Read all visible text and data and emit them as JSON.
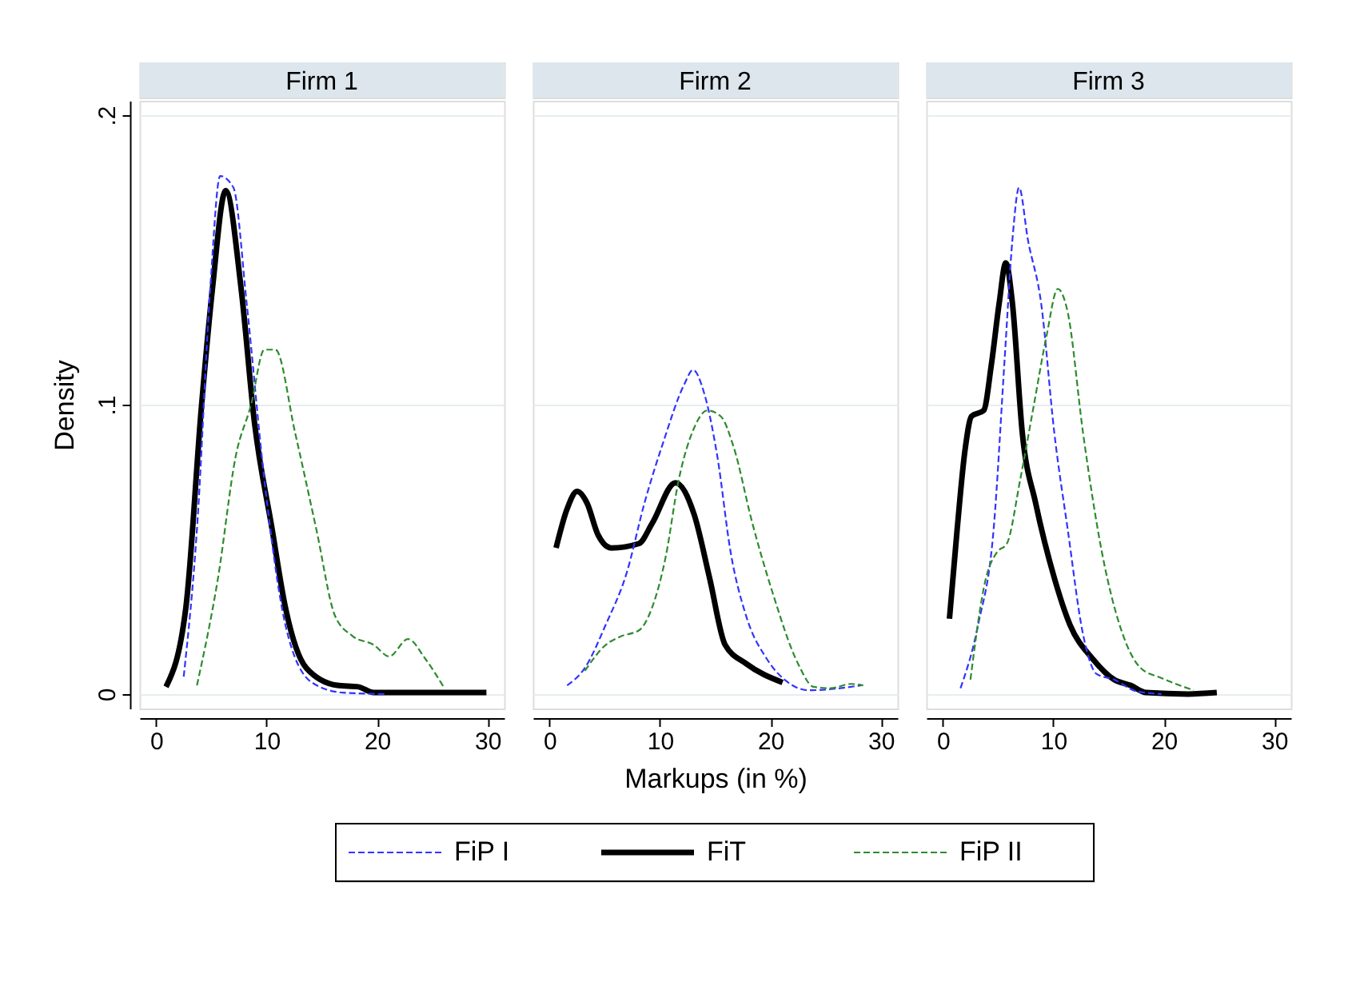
{
  "chart_data": [
    {
      "type": "line",
      "title": "Firm 1",
      "ylabel": "Density",
      "xlim": [
        -1.5,
        31.5
      ],
      "ylim": [
        -0.005,
        0.205
      ],
      "xticks": [
        0,
        10,
        20,
        30
      ],
      "yticks": [
        0,
        {
          "value": 0.1,
          "label": ".1"
        },
        {
          "value": 0.2,
          "label": ".2"
        }
      ],
      "grid": "y",
      "series": [
        {
          "color": "#3333ff",
          "line_style": "dashed",
          "x": [
            2.5,
            3.7,
            4.9,
            5.8,
            7,
            8.2,
            9.8,
            11.7,
            14.1,
            16.9,
            20.7
          ],
          "values": [
            0.006,
            0.057,
            0.14,
            0.179,
            0.175,
            0.135,
            0.074,
            0.024,
            0.004,
            0.0005,
            0
          ]
        },
        {
          "color": "#000000",
          "line_style": "solid",
          "x": [
            0.9,
            2.7,
            4.1,
            5.1,
            6.3,
            7.7,
            8.9,
            10.5,
            11.7,
            13.6,
            16.4,
            18.3,
            19.7,
            26.3,
            29.9
          ],
          "values": [
            0.0025,
            0.03,
            0.099,
            0.14,
            0.174,
            0.14,
            0.094,
            0.057,
            0.03,
            0.009,
            0.003,
            0.0025,
            0.0005,
            0.0005,
            0.0005
          ]
        },
        {
          "color": "#2e8b2e",
          "line_style": "dashed",
          "x": [
            3.7,
            5.6,
            7.2,
            8.6,
            9.8,
            10.8,
            12.6,
            14.5,
            16.2,
            17.8,
            19.7,
            21.1,
            22.8,
            24.4,
            26.1
          ],
          "values": [
            0.003,
            0.04,
            0.082,
            0.1,
            0.119,
            0.119,
            0.09,
            0.057,
            0.027,
            0.02,
            0.017,
            0.013,
            0.019,
            0.012,
            0.002
          ]
        }
      ]
    },
    {
      "type": "line",
      "title": "Firm 2",
      "xlabel": "Markups (in %)",
      "legend": "bottom",
      "tick_labels": "x",
      "xlim": [
        -1.5,
        31.5
      ],
      "ylim": [
        -0.005,
        0.205
      ],
      "xticks": [
        0,
        10,
        20,
        30
      ],
      "yticks": [
        0,
        0.1,
        0.2
      ],
      "grid": "y",
      "series": [
        {
          "name": "FiP I",
          "color": "#3333ff",
          "line_style": "dashed",
          "x": [
            1.6,
            3.2,
            5.1,
            7,
            8.6,
            10.3,
            12.2,
            13,
            14,
            15.2,
            16.4,
            17.8,
            19.7,
            21.6,
            23.5,
            26.3,
            28.2
          ],
          "values": [
            0.003,
            0.009,
            0.024,
            0.042,
            0.066,
            0.087,
            0.107,
            0.112,
            0.104,
            0.082,
            0.049,
            0.027,
            0.012,
            0.004,
            0.0013,
            0.002,
            0.003
          ]
        },
        {
          "name": "FiT",
          "color": "#000000",
          "line_style": "solid",
          "x": [
            0.6,
            1.6,
            2.5,
            3.4,
            4.4,
            5.6,
            8.1,
            9.3,
            11.4,
            13.1,
            14.5,
            15.9,
            17.8,
            21.1
          ],
          "values": [
            0.0505,
            0.064,
            0.07,
            0.066,
            0.055,
            0.0505,
            0.052,
            0.059,
            0.073,
            0.062,
            0.04,
            0.017,
            0.0105,
            0.004
          ]
        },
        {
          "name": "FiP II",
          "color": "#2e8b2e",
          "line_style": "dashed",
          "x": [
            3.2,
            5.1,
            6.5,
            8.1,
            9.3,
            10.5,
            11.7,
            13.1,
            14.3,
            15.5,
            16.7,
            18.3,
            20.2,
            22.5,
            23.9,
            25.4,
            27.3,
            28.4
          ],
          "values": [
            0.008,
            0.017,
            0.02,
            0.022,
            0.03,
            0.047,
            0.074,
            0.092,
            0.098,
            0.096,
            0.085,
            0.06,
            0.035,
            0.0105,
            0.0025,
            0.002,
            0.0035,
            0.003
          ]
        }
      ]
    },
    {
      "type": "line",
      "title": "Firm 3",
      "tick_labels": "x",
      "xlim": [
        -1.5,
        31.5
      ],
      "ylim": [
        -0.005,
        0.205
      ],
      "xticks": [
        0,
        10,
        20,
        30
      ],
      "yticks": [
        0,
        0.1,
        0.2
      ],
      "grid": "y",
      "series": [
        {
          "color": "#3333ff",
          "line_style": "dashed",
          "x": [
            1.6,
            3.2,
            4.6,
            5.6,
            6.3,
            6.9,
            7.7,
            8.9,
            10.1,
            11.3,
            12.7,
            13.9,
            15.5,
            17.5,
            19.8
          ],
          "values": [
            0.002,
            0.024,
            0.057,
            0.116,
            0.157,
            0.175,
            0.157,
            0.135,
            0.09,
            0.057,
            0.0205,
            0.007,
            0.005,
            0.001,
            0
          ]
        },
        {
          "color": "#000000",
          "line_style": "solid",
          "x": [
            0.6,
            1.3,
            2,
            2.6,
            3.7,
            4.4,
            5.1,
            5.7,
            6.3,
            7.2,
            8.4,
            10.1,
            11.5,
            13.6,
            15.5,
            17,
            18.4,
            22.2,
            24.8
          ],
          "values": [
            0.026,
            0.057,
            0.084,
            0.096,
            0.098,
            0.114,
            0.135,
            0.149,
            0.135,
            0.09,
            0.066,
            0.04,
            0.024,
            0.012,
            0.005,
            0.003,
            0.0005,
            0,
            0.0005
          ]
        },
        {
          "color": "#2e8b2e",
          "line_style": "dashed",
          "x": [
            2.5,
            3.9,
            4.9,
            5.8,
            7,
            8.2,
            9.4,
            10.4,
            11.3,
            12.7,
            14.4,
            16.3,
            17.9,
            19.8,
            22.7
          ],
          "values": [
            0.005,
            0.04,
            0.049,
            0.052,
            0.074,
            0.099,
            0.124,
            0.14,
            0.132,
            0.09,
            0.049,
            0.0205,
            0.009,
            0.0055,
            0.0013
          ]
        }
      ]
    }
  ]
}
